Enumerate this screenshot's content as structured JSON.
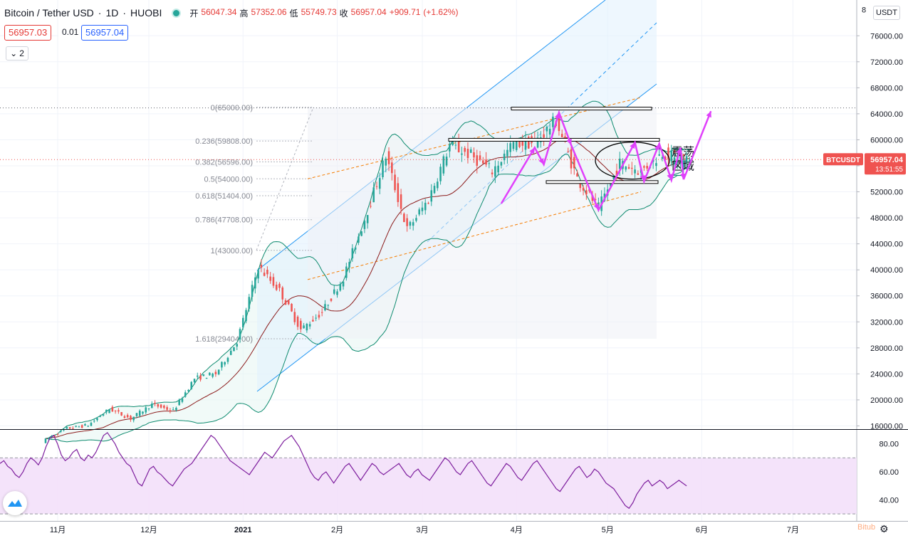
{
  "header": {
    "symbol": "Bitcoin / Tether USD",
    "interval": "1D",
    "exchange": "HUOBI",
    "sep": "·",
    "open_label": "开",
    "open": "56047.34",
    "high_label": "高",
    "high": "57352.06",
    "low_label": "低",
    "low": "55749.73",
    "close_label": "收",
    "close": "56957.04",
    "change": "+909.71",
    "change_pct": "(+1.62%)"
  },
  "quote": {
    "sell": "56957.03",
    "spread": "0.01",
    "buy": "56957.04"
  },
  "collapse_button": {
    "icon": "chevron-down-icon",
    "count": "2"
  },
  "currency": "USDT",
  "last_price": {
    "ticker": "BTCUSDT",
    "price": "56957.04",
    "countdown": "13:51:55"
  },
  "watermark": "Bitub",
  "colors": {
    "up": "#26a69a",
    "down": "#ef5350",
    "magenta": "#e040fb",
    "channel": "#2196f3",
    "bb": "#0c8a6e",
    "ma": "#8b1a1a",
    "fib_band": "#f57c00",
    "rsi_line": "#7e1f9e",
    "rsi_fill": "#f3e0fa"
  },
  "chart_data": [
    {
      "type": "candlestick",
      "title": "Bitcoin / Tether USD · 1D · HUOBI",
      "y_axis": {
        "ticks": [
          "16000.00",
          "20000.00",
          "24000.00",
          "28000.00",
          "32000.00",
          "36000.00",
          "40000.00",
          "44000.00",
          "48000.00",
          "52000.00",
          "56000.00",
          "60000.00",
          "64000.00",
          "68000.00",
          "72000.00",
          "76000.00"
        ],
        "ylim": [
          15500,
          81500
        ]
      },
      "x_axis": {
        "ticks": [
          "11月",
          "12月",
          "2021",
          "2月",
          "3月",
          "4月",
          "5月",
          "6月",
          "7月"
        ]
      },
      "ohlc_summary": [
        [
          "2020-10-28",
          13200,
          13900,
          13000,
          13600
        ],
        [
          "2020-11-05",
          14100,
          15800,
          13900,
          15600
        ],
        [
          "2020-11-12",
          15600,
          16300,
          15300,
          16100
        ],
        [
          "2020-11-19",
          16100,
          18800,
          16000,
          18600
        ],
        [
          "2020-11-26",
          18600,
          19300,
          16700,
          17100
        ],
        [
          "2020-12-03",
          17100,
          19400,
          17000,
          19300
        ],
        [
          "2020-12-10",
          19300,
          19500,
          17700,
          18300
        ],
        [
          "2020-12-17",
          18300,
          23800,
          18200,
          23300
        ],
        [
          "2020-12-24",
          23300,
          24200,
          22800,
          24000
        ],
        [
          "2020-12-31",
          24000,
          29100,
          23900,
          29000
        ],
        [
          "2021-01-07",
          29000,
          41900,
          28800,
          40500
        ],
        [
          "2021-01-14",
          40500,
          40900,
          33000,
          36800
        ],
        [
          "2021-01-21",
          36800,
          38000,
          29400,
          30800
        ],
        [
          "2021-01-28",
          30800,
          34500,
          30000,
          33500
        ],
        [
          "2021-02-04",
          33500,
          40000,
          33200,
          38800
        ],
        [
          "2021-02-11",
          38800,
          48800,
          38500,
          47800
        ],
        [
          "2021-02-18",
          47800,
          58200,
          47600,
          57500
        ],
        [
          "2021-02-25",
          57500,
          58300,
          44000,
          46200
        ],
        [
          "2021-03-04",
          46200,
          52400,
          45700,
          50800
        ],
        [
          "2021-03-11",
          50800,
          61600,
          50500,
          59200
        ],
        [
          "2021-03-18",
          59200,
          60400,
          54000,
          57600
        ],
        [
          "2021-03-25",
          57600,
          58800,
          52300,
          55200
        ],
        [
          "2021-04-01",
          55200,
          60600,
          54800,
          59400
        ],
        [
          "2021-04-08",
          59400,
          61300,
          57000,
          59600
        ],
        [
          "2021-04-15",
          59600,
          64850,
          59000,
          63000
        ],
        [
          "2021-04-22",
          63000,
          63400,
          53000,
          54000
        ],
        [
          "2021-04-29",
          54000,
          55500,
          47000,
          49500
        ],
        [
          "2021-05-06",
          49500,
          57500,
          48500,
          56400
        ],
        [
          "2021-05-13",
          56400,
          59200,
          53200,
          55200
        ],
        [
          "2021-05-20",
          55200,
          58800,
          54000,
          58000
        ],
        [
          "2021-05-27",
          56047.34,
          57352.06,
          55749.73,
          56957.04
        ]
      ],
      "fibonacci": [
        {
          "label": "0(65000.00)",
          "value": 65000
        },
        {
          "label": "0.236(59808.00)",
          "value": 59808
        },
        {
          "label": "0.382(56596.00)",
          "value": 56596
        },
        {
          "label": "0.5(54000.00)",
          "value": 54000
        },
        {
          "label": "0.618(51404.00)",
          "value": 51404
        },
        {
          "label": "0.786(47708.00)",
          "value": 47708
        },
        {
          "label": "1(43000.00)",
          "value": 43000
        },
        {
          "label": "1.618(29404.00)",
          "value": 29404
        }
      ],
      "annotation": {
        "line1": "震荡",
        "line2": "区域"
      },
      "horizontal_levels": [
        64800,
        60000,
        53500
      ],
      "last_price": 56957.04,
      "dotted_level": 64900
    },
    {
      "type": "line",
      "name": "RSI",
      "y_axis": {
        "ticks": [
          "80.00",
          "60.00",
          "40.00"
        ],
        "ylim": [
          25,
          90
        ]
      },
      "band": [
        30,
        70
      ],
      "values": [
        66,
        68,
        64,
        62,
        58,
        56,
        60,
        66,
        70,
        68,
        65,
        70,
        78,
        84,
        86,
        80,
        72,
        68,
        70,
        74,
        76,
        70,
        68,
        72,
        70,
        74,
        80,
        86,
        88,
        84,
        80,
        74,
        70,
        66,
        64,
        58,
        52,
        50,
        56,
        62,
        64,
        60,
        58,
        55,
        52,
        50,
        54,
        58,
        62,
        64,
        66,
        70,
        74,
        78,
        82,
        86,
        84,
        80,
        76,
        72,
        68,
        66,
        64,
        62,
        60,
        58,
        62,
        66,
        70,
        74,
        72,
        70,
        74,
        78,
        82,
        84,
        86,
        82,
        78,
        72,
        66,
        60,
        56,
        54,
        58,
        60,
        56,
        52,
        56,
        60,
        64,
        66,
        62,
        58,
        54,
        58,
        62,
        66,
        64,
        60,
        58,
        60,
        62,
        64,
        66,
        62,
        58,
        56,
        60,
        62,
        58,
        56,
        54,
        58,
        62,
        66,
        70,
        68,
        64,
        60,
        58,
        62,
        66,
        68,
        64,
        60,
        56,
        52,
        50,
        54,
        58,
        62,
        66,
        64,
        60,
        56,
        54,
        58,
        62,
        66,
        68,
        64,
        60,
        56,
        52,
        48,
        46,
        50,
        54,
        58,
        62,
        64,
        60,
        56,
        58,
        62,
        60,
        56,
        52,
        50,
        48,
        44,
        40,
        36,
        34,
        38,
        44,
        48,
        52,
        54,
        50,
        52,
        54,
        52,
        48,
        50,
        52,
        54,
        52,
        50
      ],
      "ylabel": ""
    }
  ]
}
